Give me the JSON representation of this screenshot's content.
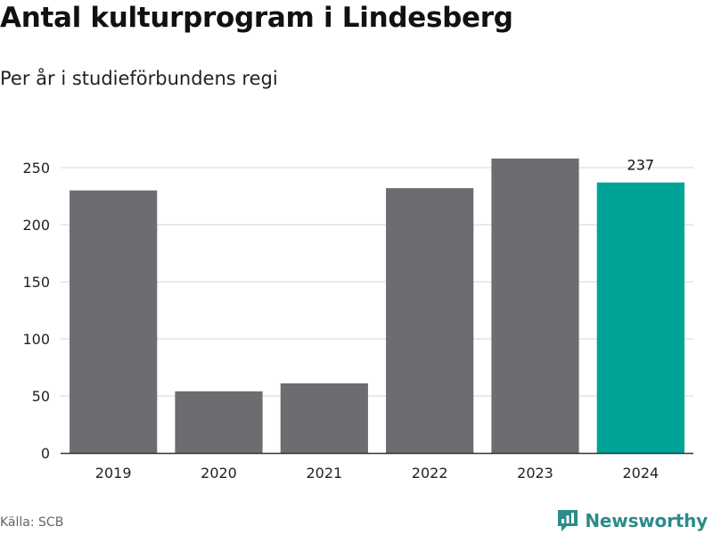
{
  "header": {
    "title": "Antal kulturprogram i Lindesberg",
    "subtitle": "Per år i studieförbundens regi"
  },
  "footer": {
    "source": "Källa: SCB",
    "brand": "Newsworthy",
    "brand_icon": "newsworthy-logo-icon"
  },
  "colors": {
    "bar": "#6d6c71",
    "highlight": "#00a397",
    "grid": "#dddddd",
    "brand": "#2c8c8a"
  },
  "chart_data": {
    "type": "bar",
    "title": "Antal kulturprogram i Lindesberg",
    "subtitle": "Per år i studieförbundens regi",
    "categories": [
      "2019",
      "2020",
      "2021",
      "2022",
      "2023",
      "2024"
    ],
    "values": [
      230,
      54,
      61,
      232,
      258,
      237
    ],
    "highlight_index": 5,
    "data_labels": [
      {
        "index": 5,
        "text": "237"
      }
    ],
    "xlabel": "",
    "ylabel": "",
    "ylim": [
      0,
      250
    ],
    "yticks": [
      0,
      50,
      100,
      150,
      200,
      250
    ],
    "grid": true,
    "legend": "none"
  }
}
